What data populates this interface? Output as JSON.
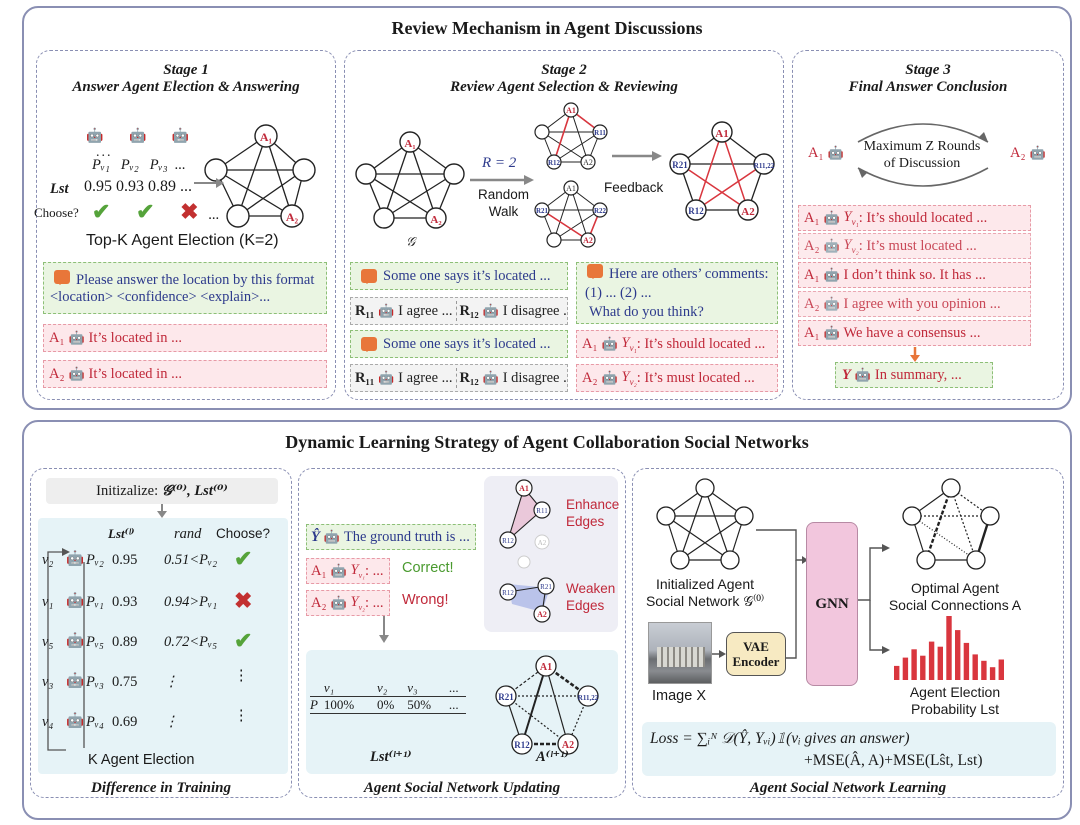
{
  "top": {
    "title": "Review Mechanism in Agent Discussions",
    "stage1": {
      "title_line1": "Stage 1",
      "title_line2": "Answer Agent Election & Answering",
      "probs": [
        "Pᵥ₁",
        "Pᵥ₂",
        "Pᵥ₃",
        "..."
      ],
      "lst_label": "Lst",
      "lst_values": [
        "0.95",
        "0.93",
        "0.89",
        "..."
      ],
      "choose_label": "Choose?",
      "election_caption": "Top-K Agent Election (K=2)",
      "prompt_line1": "Please answer the location by this format",
      "prompt_line2": "<location> <confidence> <explain>...",
      "answer1": "It’s located in ...",
      "answer2": "It’s located in ...",
      "agent1": "A₁",
      "agent2": "A₂"
    },
    "stage2": {
      "title_line1": "Stage 2",
      "title_line2": "Review Agent Selection & Reviewing",
      "graph_label": "𝒢",
      "r_eq": "R = 2",
      "random_walk": "Random\nWalk",
      "feedback": "Feedback",
      "says1": "Some one says it’s located  ...",
      "agree1": "I agree ...",
      "disagree1": "I disagree ...",
      "says2": "Some one says it’s located  ...",
      "agree2": "I agree ...",
      "disagree2": "I disagree ...",
      "r11": "R₁₁",
      "r12": "R₁₂",
      "comments_line1": "Here are others’ comments:",
      "comments_line2": "(1) ...          (2) ...",
      "comments_line3": "What do you think?",
      "should": ": It’s should located ...",
      "must": ": It’s must located ..."
    },
    "stage3": {
      "title_line1": "Stage 3",
      "title_line2": "Final Answer Conclusion",
      "rounds": "Maximum Z Rounds\nof Discussion",
      "msg1": ": It’s should located ...",
      "msg2": ": It’s must located ...",
      "msg3": "I don’t think so. It has ...",
      "msg4": "I agree with you opinion ...",
      "msg5": "We have a consensus ...",
      "summary": "In summary, ...",
      "summary_agent": "Y"
    }
  },
  "bottom": {
    "title": "Dynamic Learning Strategy of Agent Collaboration Social Networks",
    "training": {
      "init": "Initizalize:",
      "init_vars": "𝒢⁽⁰⁾,  Lst⁽⁰⁾",
      "col_lst": "Lst⁽ˡ⁾",
      "col_rand": "rand",
      "col_choose": "Choose?",
      "rows": [
        {
          "v": "v₂",
          "p": "Pᵥ₂",
          "lst": "0.95",
          "rand": "0.51<Pᵥ₂",
          "mark": "✔"
        },
        {
          "v": "v₁",
          "p": "Pᵥ₁",
          "lst": "0.93",
          "rand": "0.94>Pᵥ₁",
          "mark": "✖"
        },
        {
          "v": "v₅",
          "p": "Pᵥ₅",
          "lst": "0.89",
          "rand": "0.72<Pᵥ₅",
          "mark": "✔"
        },
        {
          "v": "v₃",
          "p": "Pᵥ₃",
          "lst": "0.75",
          "rand": "⋮",
          "mark": "⋮"
        },
        {
          "v": "v₄",
          "p": "Pᵥ₄",
          "lst": "0.69",
          "rand": "⋮",
          "mark": "⋮"
        }
      ],
      "k_election": "K Agent Election",
      "caption": "Difference in Training"
    },
    "updating": {
      "ground_truth": "The ground truth is ...",
      "yhat": "Ŷ",
      "a1_text": ": ...",
      "a2_text": ": ...",
      "correct": "Correct!",
      "wrong": "Wrong!",
      "enhance": "Enhance\nEdges",
      "weaken": "Weaken\nEdges",
      "table_headers": [
        "v₁",
        "v₂",
        "v₃",
        "..."
      ],
      "table_row_label": "P",
      "table_values": [
        "100%",
        "0%",
        "50%",
        "..."
      ],
      "lst_next": "Lst⁽ˡ⁺¹⁾",
      "a_next": "A⁽ˡ⁺¹⁾",
      "caption": "Agent Social Network Updating"
    },
    "learning": {
      "init_net": "Initialized Agent\nSocial Network 𝒢⁽⁰⁾",
      "gnn": "GNN",
      "vae": "VAE\nEncoder",
      "image_x": "Image X",
      "optimal": "Optimal Agent\nSocial Connections A",
      "election_prob": "Agent Election\nProbability Lst",
      "loss_line1": "Loss = ∑ᵢᴺ 𝒟(Ŷ, Yᵥᵢ)𝟙(vᵢ gives an answer)",
      "loss_line2": "+MSE(Â, A)+MSE(Lŝt, Lst)",
      "caption": "Agent Social Network Learning"
    }
  },
  "hist_values": [
    0.22,
    0.35,
    0.48,
    0.38,
    0.6,
    0.52,
    1.0,
    0.78,
    0.58,
    0.4,
    0.3,
    0.2,
    0.32
  ],
  "colors": {
    "border": "#8a8fb3",
    "green_bg": "#eaf5e2",
    "red_bg": "#fde8eb",
    "accent_red": "#d9363e",
    "blue_bg": "#e6f3f7",
    "gnn": "#f2c6dd",
    "vae": "#f7eac2"
  }
}
